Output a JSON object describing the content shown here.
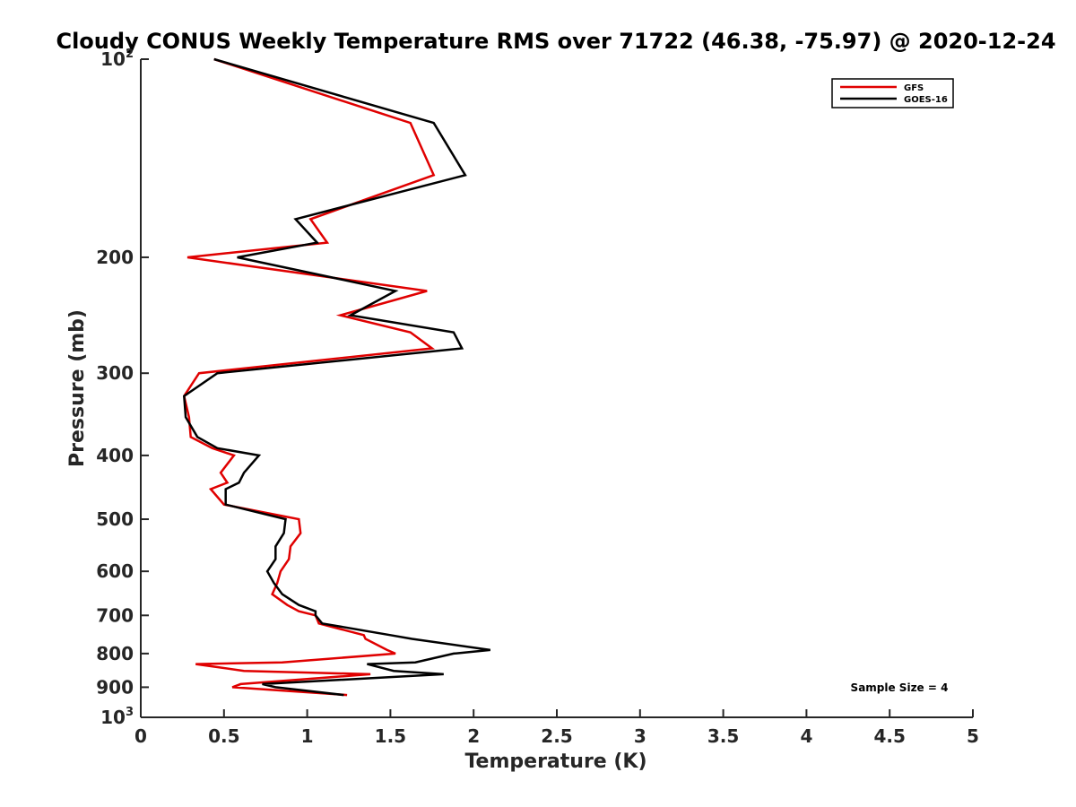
{
  "chart_data": {
    "type": "line",
    "title": "Cloudy CONUS Weekly Temperature RMS over 71722 (46.38, -75.97) @ 2020-12-24",
    "xlabel": "Temperature (K)",
    "ylabel": "Pressure (mb)",
    "xlim": [
      0,
      5
    ],
    "ylim": [
      100,
      1000
    ],
    "y_scale": "log",
    "y_reversed": true,
    "grid": false,
    "legend_position": "top-right",
    "x_ticks": [
      "0",
      "0.5",
      "1",
      "1.5",
      "2",
      "2.5",
      "3",
      "3.5",
      "4",
      "4.5",
      "5"
    ],
    "y_ticks": [
      {
        "value": 100,
        "base": "10",
        "exp": "2"
      },
      {
        "value": 200,
        "label": "200"
      },
      {
        "value": 300,
        "label": "300"
      },
      {
        "value": 400,
        "label": "400"
      },
      {
        "value": 500,
        "label": "500"
      },
      {
        "value": 600,
        "label": "600"
      },
      {
        "value": 700,
        "label": "700"
      },
      {
        "value": 800,
        "label": "800"
      },
      {
        "value": 900,
        "label": "900"
      },
      {
        "value": 1000,
        "base": "10",
        "exp": "3"
      }
    ],
    "series": [
      {
        "name": "GFS",
        "color": "#e00000",
        "points": [
          [
            0.44,
            100
          ],
          [
            1.62,
            125
          ],
          [
            1.76,
            150
          ],
          [
            1.02,
            175
          ],
          [
            1.12,
            190
          ],
          [
            0.28,
            200
          ],
          [
            1.72,
            225
          ],
          [
            1.2,
            245
          ],
          [
            1.62,
            260
          ],
          [
            1.75,
            275
          ],
          [
            0.35,
            300
          ],
          [
            0.26,
            325
          ],
          [
            0.29,
            350
          ],
          [
            0.3,
            375
          ],
          [
            0.43,
            390
          ],
          [
            0.56,
            400
          ],
          [
            0.48,
            425
          ],
          [
            0.52,
            440
          ],
          [
            0.42,
            450
          ],
          [
            0.5,
            475
          ],
          [
            0.95,
            500
          ],
          [
            0.96,
            525
          ],
          [
            0.9,
            550
          ],
          [
            0.89,
            575
          ],
          [
            0.84,
            600
          ],
          [
            0.82,
            625
          ],
          [
            0.79,
            650
          ],
          [
            0.88,
            675
          ],
          [
            0.95,
            690
          ],
          [
            1.05,
            700
          ],
          [
            1.07,
            720
          ],
          [
            1.34,
            750
          ],
          [
            1.35,
            760
          ],
          [
            1.48,
            790
          ],
          [
            1.53,
            800
          ],
          [
            0.85,
            825
          ],
          [
            0.33,
            830
          ],
          [
            0.62,
            850
          ],
          [
            1.38,
            860
          ],
          [
            0.6,
            890
          ],
          [
            0.55,
            900
          ],
          [
            1.24,
            925
          ]
        ]
      },
      {
        "name": "GOES-16",
        "color": "#000000",
        "points": [
          [
            0.44,
            100
          ],
          [
            1.76,
            125
          ],
          [
            1.95,
            150
          ],
          [
            0.93,
            175
          ],
          [
            1.06,
            190
          ],
          [
            0.58,
            200
          ],
          [
            1.53,
            225
          ],
          [
            1.26,
            245
          ],
          [
            1.88,
            260
          ],
          [
            1.93,
            275
          ],
          [
            0.46,
            300
          ],
          [
            0.26,
            325
          ],
          [
            0.27,
            350
          ],
          [
            0.34,
            375
          ],
          [
            0.46,
            390
          ],
          [
            0.71,
            400
          ],
          [
            0.62,
            425
          ],
          [
            0.59,
            440
          ],
          [
            0.51,
            450
          ],
          [
            0.51,
            475
          ],
          [
            0.87,
            500
          ],
          [
            0.86,
            525
          ],
          [
            0.81,
            550
          ],
          [
            0.81,
            575
          ],
          [
            0.76,
            600
          ],
          [
            0.8,
            625
          ],
          [
            0.85,
            650
          ],
          [
            0.95,
            675
          ],
          [
            1.05,
            690
          ],
          [
            1.05,
            700
          ],
          [
            1.09,
            720
          ],
          [
            1.5,
            750
          ],
          [
            1.63,
            760
          ],
          [
            2.1,
            790
          ],
          [
            1.88,
            800
          ],
          [
            1.65,
            825
          ],
          [
            1.36,
            830
          ],
          [
            1.52,
            850
          ],
          [
            1.82,
            860
          ],
          [
            0.73,
            890
          ],
          [
            0.81,
            900
          ],
          [
            1.22,
            925
          ]
        ]
      }
    ],
    "annotations": [
      "Sample Size = 4"
    ]
  }
}
